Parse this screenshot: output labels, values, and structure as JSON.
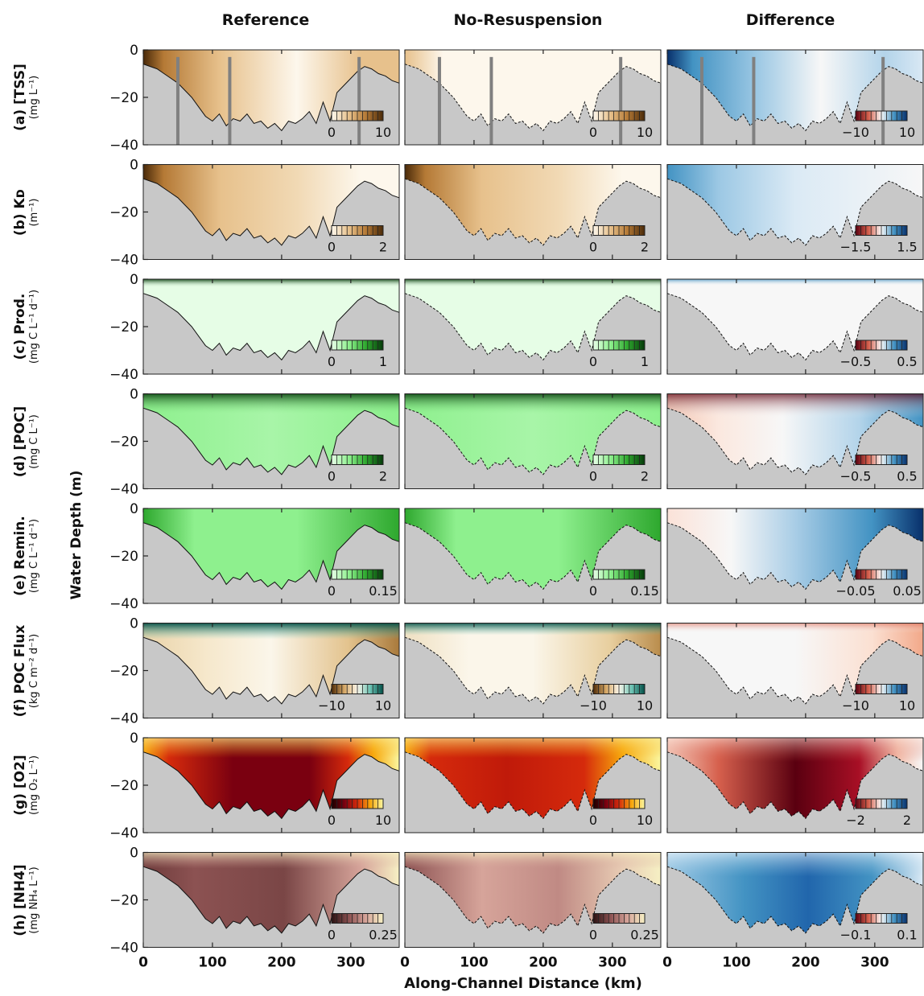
{
  "columns": [
    "Reference",
    "No-Resuspension",
    "Difference"
  ],
  "ylabel": "Water Depth (m)",
  "xlabel": "Along-Channel Distance (km)",
  "colors": {
    "bed": "#c8c8c8",
    "tss": [
      "#fdf7ec",
      "#e7c18c",
      "#b57a36",
      "#4a2a09"
    ],
    "green": [
      "#e6fde6",
      "#8ef08e",
      "#2ea82e",
      "#053a0a"
    ],
    "flux": [
      "#4f2a06",
      "#d7a967",
      "#fbf6ea",
      "#6cc3b4",
      "#014d45"
    ],
    "o2": [
      "#1a0000",
      "#7a0010",
      "#d52a0c",
      "#f7a80c",
      "#fbf7a0"
    ],
    "nh4": [
      "#2a1212",
      "#8c5252",
      "#d6a49a",
      "#f6f0c4"
    ],
    "diverging": [
      "#5a0010",
      "#d6604d",
      "#f7f7f7",
      "#4393c3",
      "#08306b"
    ]
  },
  "chart_data": {
    "type": "heatmap",
    "x_range_km": [
      0,
      370
    ],
    "y_range_m": [
      -40,
      0
    ],
    "x_ticks": [
      0,
      100,
      200,
      300
    ],
    "y_ticks": [
      0,
      -20,
      -40
    ],
    "rows": [
      {
        "id": "a",
        "label": "(a) [TSS]",
        "unit": "(mg L⁻¹)",
        "scale_type": "seq",
        "palette": "tss",
        "ref_cb": [
          "0",
          "10"
        ],
        "diff_cb": [
          "−10",
          "10"
        ],
        "markers_km": [
          50,
          125,
          312
        ]
      },
      {
        "id": "b",
        "label": "(b) Kᴅ",
        "unit": "(m⁻¹)",
        "scale_type": "seq",
        "palette": "tss",
        "ref_cb": [
          "0",
          "2"
        ],
        "diff_cb": [
          "−1.5",
          "1.5"
        ],
        "markers_km": []
      },
      {
        "id": "c",
        "label": "(c) Prod.",
        "unit": "(mg C L⁻¹ d⁻¹)",
        "scale_type": "seq",
        "palette": "green",
        "ref_cb": [
          "0",
          "1"
        ],
        "diff_cb": [
          "−0.5",
          "0.5"
        ],
        "markers_km": []
      },
      {
        "id": "d",
        "label": "(d) [POC]",
        "unit": "(mg C L⁻¹)",
        "scale_type": "seq",
        "palette": "green",
        "ref_cb": [
          "0",
          "2"
        ],
        "diff_cb": [
          "−0.5",
          "0.5"
        ],
        "markers_km": []
      },
      {
        "id": "e",
        "label": "(e) Remin.",
        "unit": "(mg C L⁻¹ d⁻¹)",
        "scale_type": "seq",
        "palette": "green",
        "ref_cb": [
          "0",
          "0.15"
        ],
        "diff_cb": [
          "−0.05",
          "0.05"
        ],
        "markers_km": []
      },
      {
        "id": "f",
        "label": "(f) POC Flux",
        "unit": "(kg C m⁻² d⁻¹)",
        "scale_type": "div",
        "palette": "flux",
        "ref_cb": [
          "−10",
          "10"
        ],
        "diff_cb": [
          "−10",
          "10"
        ],
        "markers_km": []
      },
      {
        "id": "g",
        "label": "(g) [O2]",
        "unit": "(mg O₂ L⁻¹)",
        "scale_type": "seq",
        "palette": "o2",
        "ref_cb": [
          "0",
          "10"
        ],
        "diff_cb": [
          "−2",
          "2"
        ],
        "markers_km": []
      },
      {
        "id": "h",
        "label": "(h) [NH4]",
        "unit": "(mg NH₄ L⁻¹)",
        "scale_type": "seq",
        "palette": "nh4",
        "ref_cb": [
          "0",
          "0.25"
        ],
        "diff_cb": [
          "−0.1",
          "0.1"
        ],
        "markers_km": []
      }
    ],
    "bathymetry": {
      "x_km": [
        0,
        10,
        20,
        30,
        40,
        50,
        60,
        70,
        80,
        90,
        100,
        110,
        120,
        130,
        140,
        150,
        160,
        170,
        180,
        190,
        200,
        210,
        220,
        230,
        240,
        250,
        260,
        270,
        280,
        290,
        300,
        310,
        320,
        330,
        340,
        350,
        360,
        370
      ],
      "depth_m": [
        -6,
        -7,
        -8,
        -10,
        -12,
        -14,
        -17,
        -20,
        -24,
        -28,
        -30,
        -27,
        -32,
        -29,
        -30,
        -27,
        -31,
        -30,
        -33,
        -31,
        -34,
        -30,
        -31,
        -29,
        -26,
        -31,
        -22,
        -30,
        -18,
        -15,
        -12,
        -9,
        -7,
        -8,
        -10,
        -11,
        -13,
        -14
      ]
    }
  }
}
